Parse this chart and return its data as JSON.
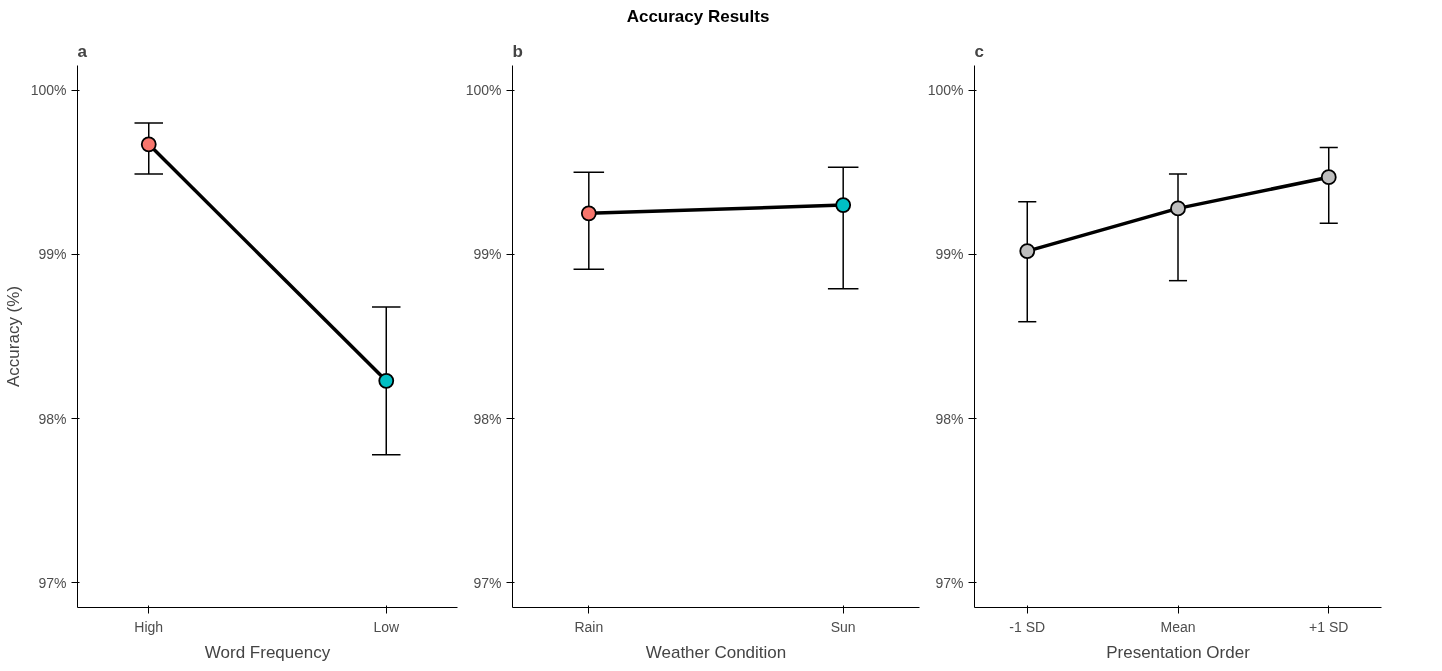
{
  "chart_data": [
    {
      "type": "other",
      "title": "Accuracy Results"
    },
    {
      "type": "line",
      "title": "a",
      "xlabel": "Word Frequency",
      "ylabel": "Accuracy (%)",
      "categories": [
        "High",
        "Low"
      ],
      "series": [
        {
          "color": "#000000",
          "colors": [
            "#f8766d",
            "#00bfc4"
          ],
          "values": [
            99.67,
            98.23
          ],
          "errors": [
            [
              99.49,
              99.8
            ],
            [
              97.78,
              98.68
            ]
          ]
        }
      ],
      "ylim": [
        96.85,
        100.15
      ],
      "yticks": [
        {
          "value": 97,
          "label": "97%"
        },
        {
          "value": 98,
          "label": "98%"
        },
        {
          "value": 99,
          "label": "99%"
        },
        {
          "value": 100,
          "label": "100%"
        }
      ],
      "marker": "circle",
      "line_style": "solid",
      "grid": false
    },
    {
      "type": "line",
      "title": "b",
      "xlabel": "Weather Condition",
      "categories": [
        "Rain",
        "Sun"
      ],
      "series": [
        {
          "color": "#000000",
          "colors": [
            "#f8766d",
            "#00bfc4"
          ],
          "values": [
            99.25,
            99.3
          ],
          "errors": [
            [
              98.91,
              99.5
            ],
            [
              98.79,
              99.53
            ]
          ]
        }
      ],
      "ylim": [
        96.85,
        100.15
      ],
      "yticks": [
        {
          "value": 97,
          "label": "97%"
        },
        {
          "value": 98,
          "label": "98%"
        },
        {
          "value": 99,
          "label": "99%"
        },
        {
          "value": 100,
          "label": "100%"
        }
      ],
      "marker": "circle",
      "line_style": "solid",
      "grid": false
    },
    {
      "type": "line",
      "title": "c",
      "xlabel": "Presentation Order",
      "categories": [
        "-1 SD",
        "Mean",
        "+1 SD"
      ],
      "series": [
        {
          "color": "#000000",
          "colors": [
            "#bebebe",
            "#bebebe",
            "#bebebe"
          ],
          "values": [
            99.02,
            99.28,
            99.47
          ],
          "errors": [
            [
              98.59,
              99.32
            ],
            [
              98.84,
              99.49
            ],
            [
              99.19,
              99.65
            ]
          ]
        }
      ],
      "ylim": [
        96.85,
        100.15
      ],
      "yticks": [
        {
          "value": 97,
          "label": "97%"
        },
        {
          "value": 98,
          "label": "98%"
        },
        {
          "value": 99,
          "label": "99%"
        },
        {
          "value": 100,
          "label": "100%"
        }
      ],
      "marker": "circle",
      "line_style": "solid",
      "grid": false
    }
  ]
}
